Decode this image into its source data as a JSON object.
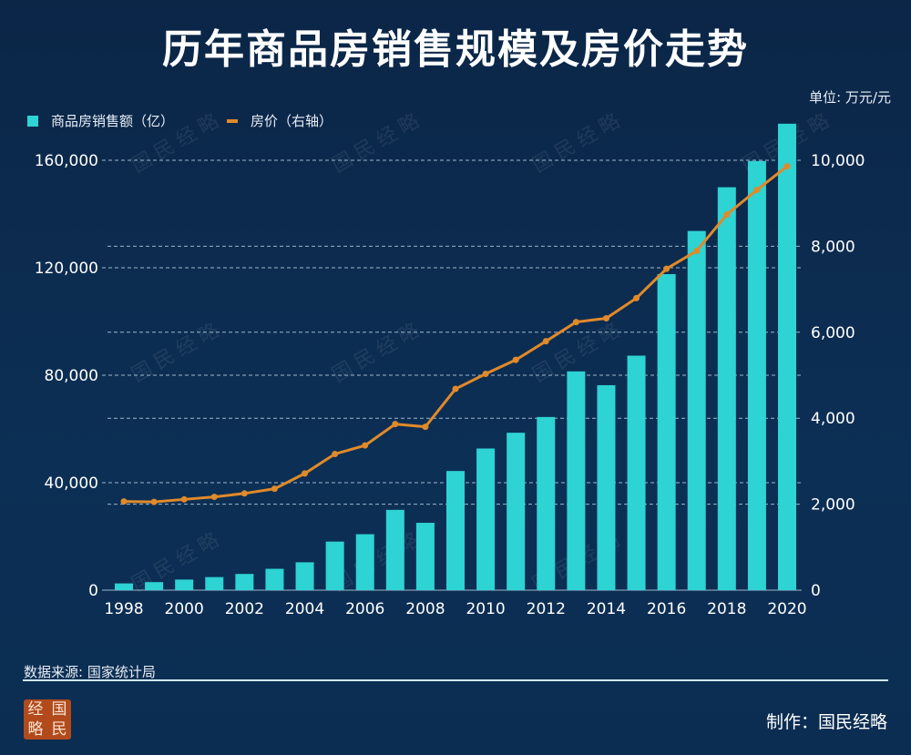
{
  "title": "历年商品房销售规模及房价走势",
  "unit": "单位: 万元/元",
  "source": "数据来源: 国家统计局",
  "credit": "制作：国民经略",
  "logo_text": [
    "经",
    "国",
    "略",
    "民"
  ],
  "watermark": "国民经略",
  "colors": {
    "bar": "#2ed3d3",
    "line": "#e08a2a",
    "background": "#0c2c50"
  },
  "chart_data": {
    "type": "bar+line",
    "title": "历年商品房销售规模及房价走势",
    "categories": [
      "1998",
      "1999",
      "2000",
      "2001",
      "2002",
      "2003",
      "2004",
      "2005",
      "2006",
      "2007",
      "2008",
      "2009",
      "2010",
      "2011",
      "2012",
      "2013",
      "2014",
      "2015",
      "2016",
      "2017",
      "2018",
      "2019",
      "2020"
    ],
    "x_tick_labels": [
      "1998",
      "2000",
      "2002",
      "2004",
      "2006",
      "2008",
      "2010",
      "2012",
      "2014",
      "2016",
      "2018",
      "2020"
    ],
    "series": [
      {
        "name": "商品房销售额（亿）",
        "type": "bar",
        "axis": "left",
        "values": [
          2513,
          2988,
          3935,
          4863,
          6032,
          7956,
          10376,
          18080,
          20826,
          29889,
          25068,
          44355,
          52721,
          58589,
          64456,
          81428,
          76292,
          87281,
          117627,
          133701,
          149973,
          159725,
          173613
        ]
      },
      {
        "name": "房价（右轴）",
        "type": "line",
        "axis": "right",
        "values": [
          2063,
          2053,
          2112,
          2170,
          2250,
          2359,
          2714,
          3168,
          3367,
          3864,
          3800,
          4681,
          5032,
          5357,
          5791,
          6237,
          6324,
          6793,
          7476,
          7892,
          8737,
          9310,
          9860
        ]
      }
    ],
    "left_axis": {
      "ylim": [
        0,
        160000
      ],
      "ticks": [
        "0",
        "40,000",
        "80,000",
        "120,000",
        "160,000"
      ]
    },
    "right_axis": {
      "ylim": [
        0,
        10000
      ],
      "ticks": [
        "0",
        "2,000",
        "4,000",
        "6,000",
        "8,000",
        "10,000"
      ]
    },
    "grid": "dashed horizontal",
    "legend": "top-left"
  }
}
